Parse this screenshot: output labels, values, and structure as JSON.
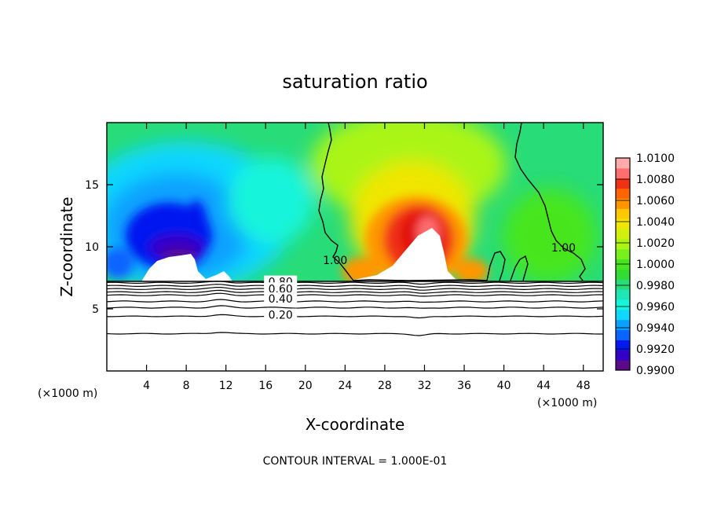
{
  "chart_data": {
    "type": "heatmap",
    "title": "saturation ratio",
    "xlabel": "X-coordinate",
    "ylabel": "Z-coordinate",
    "x_unit": "(×1000 m)",
    "y_unit": "(×1000 m)",
    "xlim": [
      0,
      50
    ],
    "ylim": [
      0,
      20
    ],
    "x_ticks": [
      4,
      8,
      12,
      16,
      20,
      24,
      28,
      32,
      36,
      40,
      44,
      48
    ],
    "x_tick_labels": [
      "4",
      "8",
      "12",
      "16",
      "20",
      "24",
      "28",
      "32",
      "36",
      "40",
      "44",
      "48"
    ],
    "y_ticks": [
      5,
      10,
      15
    ],
    "y_tick_labels": [
      "5",
      "10",
      "15"
    ],
    "colorbar": {
      "min": 0.99,
      "max": 1.01,
      "step": 0.001,
      "tick_values": [
        0.99,
        0.992,
        0.994,
        0.996,
        0.998,
        1.0,
        1.002,
        1.004,
        1.006,
        1.008,
        1.01
      ],
      "tick_labels": [
        "0.9900",
        "0.9920",
        "0.9940",
        "0.9960",
        "0.9980",
        "1.0000",
        "1.0020",
        "1.0040",
        "1.0060",
        "1.0080",
        "1.0100"
      ],
      "colors": [
        "#5a0a87",
        "#3400c8",
        "#0019f0",
        "#0a64ff",
        "#0aa0ff",
        "#0fd7ff",
        "#14f5dc",
        "#1ee6b4",
        "#28dc78",
        "#32dc32",
        "#46e61e",
        "#78f01e",
        "#aaf514",
        "#d2f00f",
        "#f0e600",
        "#ffc800",
        "#ff9600",
        "#ff6400",
        "#f03214",
        "#ff6e6e",
        "#ffaaaa"
      ]
    },
    "surface_level": 7.2,
    "contour_labels": [
      {
        "text": "1.00",
        "x": 23.0,
        "y": 8.8
      },
      {
        "text": "1.00",
        "x": 46.0,
        "y": 9.8
      },
      {
        "text": "0.80",
        "x": 17.5,
        "y": 7.05
      },
      {
        "text": "0.60",
        "x": 17.5,
        "y": 6.5
      },
      {
        "text": "0.40",
        "x": 17.5,
        "y": 5.7
      },
      {
        "text": "0.20",
        "x": 17.5,
        "y": 4.4
      }
    ],
    "low_contours": [
      {
        "level": 0.9,
        "z": 7.1
      },
      {
        "level": 0.8,
        "z": 6.85
      },
      {
        "level": 0.7,
        "z": 6.6
      },
      {
        "level": 0.6,
        "z": 6.35
      },
      {
        "level": 0.5,
        "z": 6.1
      },
      {
        "level": 0.4,
        "z": 5.6
      },
      {
        "level": 0.3,
        "z": 5.1
      },
      {
        "level": 0.2,
        "z": 4.4
      },
      {
        "level": 0.1,
        "z": 3.0
      }
    ],
    "contour_interval_text": "CONTOUR INTERVAL = 1.000E-01"
  }
}
